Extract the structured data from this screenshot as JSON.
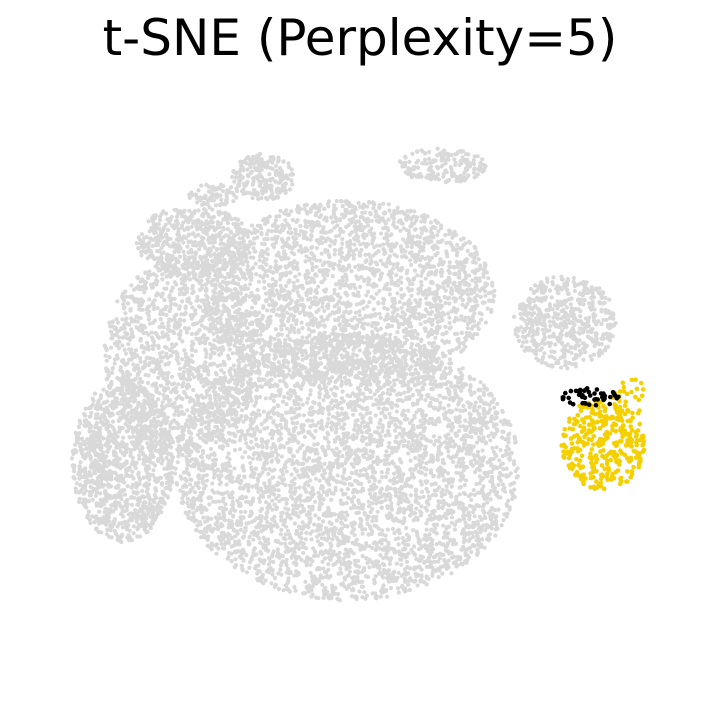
{
  "chart_data": {
    "type": "scatter",
    "title": "t-SNE (Perplexity=5)",
    "xlabel": "",
    "ylabel": "",
    "axes_visible": false,
    "grid": false,
    "legend": "none",
    "xlim": [
      0,
      100
    ],
    "ylim": [
      0,
      100
    ],
    "colors": {
      "background_points": "#d9d9d9",
      "highlight_yellow": "#f5d000",
      "highlight_black": "#000000"
    },
    "clusters": [
      {
        "color": "background_points",
        "cx": 48,
        "cy": 65,
        "rx": 23,
        "ry": 16,
        "n": 2600
      },
      {
        "color": "background_points",
        "cx": 48,
        "cy": 35,
        "rx": 27,
        "ry": 23,
        "n": 4200
      },
      {
        "color": "background_points",
        "cx": 22,
        "cy": 54,
        "rx": 12,
        "ry": 17,
        "n": 1300
      },
      {
        "color": "background_points",
        "cx": 13,
        "cy": 36,
        "rx": 8,
        "ry": 14,
        "n": 1100
      },
      {
        "color": "background_points",
        "cx": 24,
        "cy": 74,
        "rx": 9,
        "ry": 6,
        "n": 500
      },
      {
        "color": "background_points",
        "cx": 35,
        "cy": 85,
        "rx": 5,
        "ry": 4,
        "n": 220
      },
      {
        "color": "background_points",
        "cx": 63,
        "cy": 87,
        "rx": 7,
        "ry": 3,
        "n": 180
      },
      {
        "color": "background_points",
        "cx": 82,
        "cy": 60,
        "rx": 8,
        "ry": 8,
        "n": 550
      },
      {
        "color": "background_points",
        "cx": 27,
        "cy": 82,
        "rx": 4,
        "ry": 2,
        "n": 70
      },
      {
        "color": "background_points",
        "cx": 9,
        "cy": 36,
        "rx": 2,
        "ry": 5,
        "n": 50
      },
      {
        "color": "highlight_yellow",
        "cx": 88,
        "cy": 39,
        "rx": 6.5,
        "ry": 8,
        "n": 340
      },
      {
        "color": "highlight_yellow",
        "cx": 92,
        "cy": 47,
        "rx": 2.5,
        "ry": 4,
        "n": 30
      },
      {
        "color": "highlight_black",
        "cx": 86,
        "cy": 47,
        "rx": 4.5,
        "ry": 1.6,
        "n": 45
      }
    ]
  }
}
